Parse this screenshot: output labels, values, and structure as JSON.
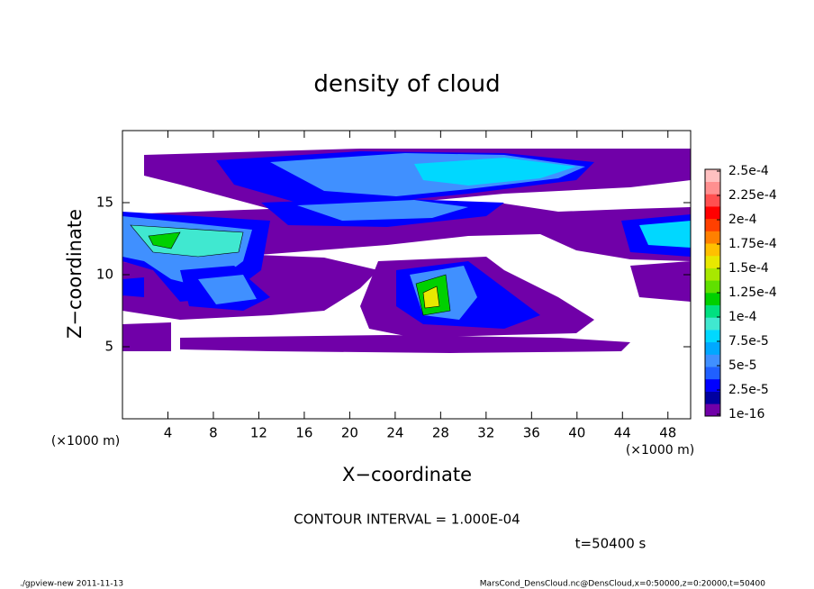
{
  "chart_data": {
    "type": "contour",
    "title": "density of cloud",
    "xlabel": "X−coordinate",
    "ylabel": "Z−coordinate",
    "xunit": "(×1000 m)",
    "yunit": "(×1000 m)",
    "xlim": [
      0,
      50
    ],
    "ylim": [
      0,
      20
    ],
    "xticks": [
      4,
      8,
      12,
      16,
      20,
      24,
      28,
      32,
      36,
      40,
      44,
      48
    ],
    "yticks": [
      5,
      10,
      15
    ],
    "colorbar": {
      "clim": [
        0,
        0.00025
      ],
      "ticks": [
        {
          "value": 1e-16,
          "label": "1e-16"
        },
        {
          "value": 2.5e-05,
          "label": "2.5e-5"
        },
        {
          "value": 5e-05,
          "label": "5e-5"
        },
        {
          "value": 7.5e-05,
          "label": "7.5e-5"
        },
        {
          "value": 0.0001,
          "label": "1e-4"
        },
        {
          "value": 0.000125,
          "label": "1.25e-4"
        },
        {
          "value": 0.00015,
          "label": "1.5e-4"
        },
        {
          "value": 0.000175,
          "label": "1.75e-4"
        },
        {
          "value": 0.0002,
          "label": "2e-4"
        },
        {
          "value": 0.000225,
          "label": "2.25e-4"
        },
        {
          "value": 0.00025,
          "label": "2.5e-4"
        }
      ],
      "colors": [
        "#7000a8",
        "#0000a0",
        "#0000ff",
        "#2060ff",
        "#4090ff",
        "#00a8ff",
        "#00d8ff",
        "#40e8d0",
        "#00e080",
        "#00d000",
        "#60e000",
        "#a8e800",
        "#e8e800",
        "#ffc000",
        "#ff8000",
        "#ff4000",
        "#ff0000",
        "#ff5050",
        "#ff9090",
        "#ffc0c0"
      ]
    },
    "annotation": "CONTOUR INTERVAL = 1.000E-04",
    "time_label": "t=50400 s",
    "footer_left": "./gpview-new   2011-11-13",
    "footer_right": "MarsCond_DensCloud.nc@DensCloud,x=0:50000,z=0:20000,t=50400"
  }
}
